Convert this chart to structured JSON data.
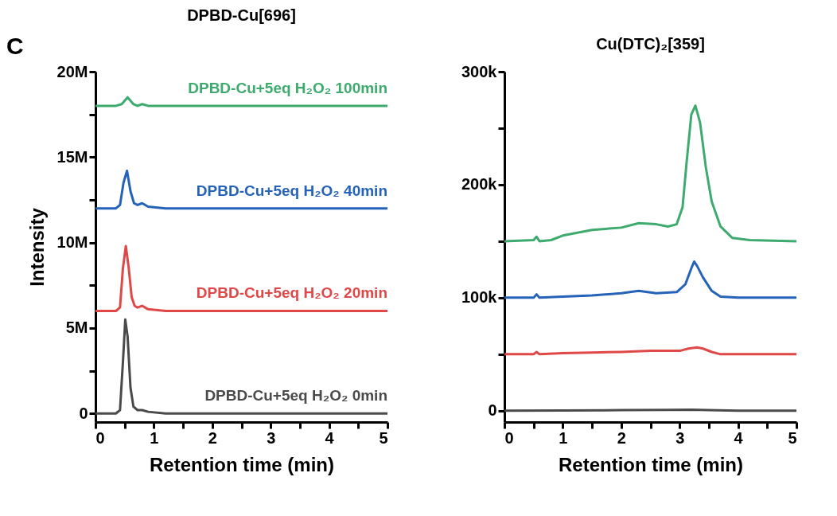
{
  "chart_data": [
    {
      "type": "line",
      "title": "DPBD-Cu[696]",
      "xlabel": "Retention time (min)",
      "ylabel": "Intensity",
      "annotations": [
        "C"
      ],
      "legend": false,
      "xlim": [
        0,
        5
      ],
      "ylim": [
        -500000,
        20000000
      ],
      "xticks": [
        0,
        {
          "value": 0.5,
          "label": null
        },
        1,
        {
          "value": 1.5,
          "label": null
        },
        2,
        {
          "value": 2.5,
          "label": null
        },
        3,
        {
          "value": 3.5,
          "label": null
        },
        4,
        {
          "value": 4.5,
          "label": null
        },
        5
      ],
      "yticks": [
        {
          "value": 0,
          "label": "0"
        },
        {
          "value": 2500000,
          "label": null
        },
        {
          "value": 5000000,
          "label": "5M"
        },
        {
          "value": 7500000,
          "label": null
        },
        {
          "value": 10000000,
          "label": "10M"
        },
        {
          "value": 12500000,
          "label": null
        },
        {
          "value": 15000000,
          "label": "15M"
        },
        {
          "value": 17500000,
          "label": null
        },
        {
          "value": 20000000,
          "label": "20M"
        }
      ],
      "series": [
        {
          "name": "DPBD-Cu+5eq H₂O₂ 0min",
          "color": "#4a4a4a",
          "x": [
            0,
            0.35,
            0.42,
            0.47,
            0.51,
            0.55,
            0.6,
            0.65,
            0.72,
            0.8,
            0.9,
            1.2,
            5
          ],
          "values": [
            0,
            0,
            200000,
            3000000,
            5500000,
            4500000,
            1500000,
            400000,
            200000,
            200000,
            100000,
            0,
            0
          ]
        },
        {
          "name": "DPBD-Cu+5eq H₂O₂ 20min",
          "color": "#e04848",
          "x": [
            0,
            0.35,
            0.42,
            0.47,
            0.52,
            0.57,
            0.62,
            0.67,
            0.72,
            0.8,
            0.9,
            1.2,
            5
          ],
          "values": [
            6000000,
            6000000,
            6200000,
            8500000,
            9800000,
            8500000,
            6800000,
            6300000,
            6200000,
            6300000,
            6100000,
            6000000,
            6000000
          ]
        },
        {
          "name": "DPBD-Cu+5eq H₂O₂ 40min",
          "color": "#2563b8",
          "x": [
            0,
            0.35,
            0.42,
            0.48,
            0.54,
            0.6,
            0.66,
            0.72,
            0.8,
            0.9,
            1.2,
            5
          ],
          "values": [
            12000000,
            12000000,
            12200000,
            13500000,
            14200000,
            13000000,
            12300000,
            12200000,
            12300000,
            12100000,
            12000000,
            12000000
          ]
        },
        {
          "name": "DPBD-Cu+5eq H₂O₂ 100min",
          "color": "#3daa6e",
          "x": [
            0,
            0.35,
            0.45,
            0.55,
            0.65,
            0.72,
            0.8,
            0.9,
            1.2,
            5
          ],
          "values": [
            18000000,
            18000000,
            18100000,
            18500000,
            18100000,
            18000000,
            18100000,
            18000000,
            18000000,
            18000000
          ]
        }
      ]
    },
    {
      "type": "line",
      "title": "Cu(DTC)₂[359]",
      "xlabel": "Retention time (min)",
      "legend": false,
      "xlim": [
        0,
        5
      ],
      "ylim": [
        -10000,
        300000
      ],
      "xticks": [
        0,
        {
          "value": 0.5,
          "label": null
        },
        1,
        {
          "value": 1.5,
          "label": null
        },
        2,
        {
          "value": 2.5,
          "label": null
        },
        3,
        {
          "value": 3.5,
          "label": null
        },
        4,
        {
          "value": 4.5,
          "label": null
        },
        5
      ],
      "yticks": [
        {
          "value": 0,
          "label": "0"
        },
        {
          "value": 50000,
          "label": null
        },
        {
          "value": 100000,
          "label": "100k"
        },
        {
          "value": 150000,
          "label": null
        },
        {
          "value": 200000,
          "label": "200k"
        },
        {
          "value": 250000,
          "label": null
        },
        {
          "value": 300000,
          "label": "300k"
        }
      ],
      "series": [
        {
          "color": "#4a4a4a",
          "x": [
            0,
            1,
            2,
            2.8,
            3.2,
            3.5,
            4,
            5
          ],
          "values": [
            0,
            300,
            500,
            700,
            1000,
            500,
            0,
            0
          ]
        },
        {
          "color": "#e04848",
          "x": [
            0,
            0.5,
            0.55,
            0.6,
            1,
            1.5,
            2,
            2.5,
            3,
            3.15,
            3.3,
            3.4,
            3.55,
            3.7,
            4,
            5
          ],
          "values": [
            50000,
            50000,
            52000,
            50000,
            51000,
            51500,
            52000,
            53000,
            53000,
            55000,
            56000,
            55000,
            52000,
            50000,
            50000,
            50000
          ]
        },
        {
          "color": "#2563b8",
          "x": [
            0,
            0.5,
            0.55,
            0.6,
            1,
            1.5,
            2,
            2.3,
            2.6,
            2.95,
            3.1,
            3.2,
            3.25,
            3.3,
            3.4,
            3.55,
            3.7,
            4,
            5
          ],
          "values": [
            100000,
            100000,
            103000,
            100000,
            101000,
            102000,
            104000,
            106000,
            104000,
            105000,
            112000,
            126000,
            132000,
            128000,
            118000,
            106000,
            101000,
            100000,
            100000
          ]
        },
        {
          "color": "#3daa6e",
          "x": [
            0,
            0.5,
            0.55,
            0.6,
            0.8,
            1,
            1.5,
            2,
            2.3,
            2.6,
            2.8,
            2.95,
            3.05,
            3.12,
            3.2,
            3.27,
            3.35,
            3.45,
            3.55,
            3.7,
            3.9,
            4.2,
            5
          ],
          "values": [
            150000,
            151000,
            154000,
            150000,
            151000,
            155000,
            160000,
            162000,
            166000,
            165000,
            163000,
            165000,
            180000,
            220000,
            262000,
            270000,
            255000,
            215000,
            185000,
            163000,
            153000,
            151000,
            150000
          ]
        }
      ]
    }
  ]
}
